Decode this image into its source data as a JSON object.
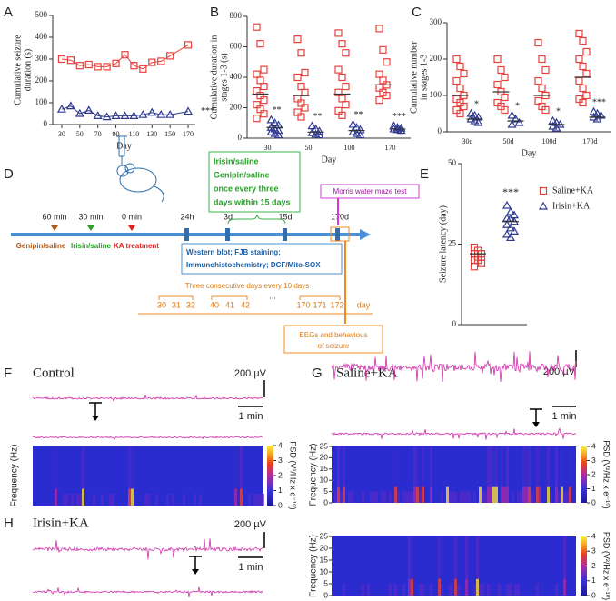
{
  "chart_data": [
    {
      "type": "line",
      "panel": "A",
      "ylabel": [
        "Cumulative seizure",
        "duration (s)"
      ],
      "xlabel": "Day",
      "x": [
        30,
        40,
        50,
        60,
        70,
        80,
        90,
        100,
        110,
        120,
        130,
        140,
        150,
        170
      ],
      "xlim": [
        20,
        178
      ],
      "xticks": [
        30,
        50,
        70,
        90,
        110,
        130,
        150,
        170
      ],
      "ylim": [
        0,
        500
      ],
      "yticks": [
        0,
        100,
        200,
        300,
        400,
        500
      ],
      "series": [
        {
          "color": "#e8413c",
          "marker": "square",
          "values": [
            300,
            295,
            270,
            275,
            265,
            265,
            280,
            320,
            270,
            255,
            285,
            290,
            315,
            365
          ]
        },
        {
          "color": "#2f3a8f",
          "marker": "triangle",
          "values": [
            70,
            85,
            50,
            65,
            40,
            35,
            40,
            40,
            40,
            45,
            55,
            45,
            45,
            60
          ]
        }
      ],
      "annotation": "***"
    },
    {
      "type": "strip",
      "panel": "B",
      "ylabel": [
        "Cumulative duration in",
        "stages 1-3 (s)"
      ],
      "xlabel": "Day",
      "categories": [
        "30",
        "50",
        "100",
        "170"
      ],
      "ylim": [
        0,
        800
      ],
      "yticks": [
        0,
        200,
        400,
        600,
        800
      ],
      "series": [
        {
          "color": "#e8413c",
          "marker": "square",
          "values": [
            [
              730,
              620,
              450,
              420,
              380,
              340,
              310,
              280,
              250,
              220,
              190,
              160,
              130
            ],
            [
              650,
              560,
              430,
              400,
              340,
              300,
              260,
              230,
              200,
              170,
              140
            ],
            [
              690,
              620,
              560,
              450,
              400,
              340,
              300,
              260,
              220,
              180,
              150
            ],
            [
              720,
              580,
              500,
              420,
              380,
              350,
              330,
              300,
              280,
              250
            ]
          ],
          "means": [
            290,
            280,
            290,
            350
          ]
        },
        {
          "color": "#2f3a8f",
          "marker": "triangle",
          "values": [
            [
              120,
              100,
              85,
              70,
              60,
              50,
              40,
              30,
              20
            ],
            [
              80,
              60,
              45,
              35,
              25,
              20
            ],
            [
              90,
              70,
              55,
              40,
              30,
              20
            ],
            [
              80,
              70,
              65,
              60,
              55,
              50
            ]
          ],
          "means": [
            70,
            40,
            50,
            60
          ]
        }
      ],
      "annotations": [
        "**",
        "**",
        "**",
        "***"
      ]
    },
    {
      "type": "strip",
      "panel": "C",
      "ylabel": [
        "Cumulative number",
        "in stages 1-3"
      ],
      "xlabel": "Day",
      "categories": [
        "30d",
        "50d",
        "100d",
        "170d"
      ],
      "ylim": [
        0,
        300
      ],
      "yticks": [
        0,
        100,
        200,
        300
      ],
      "series": [
        {
          "color": "#e8413c",
          "marker": "square",
          "values": [
            [
              200,
              180,
              160,
              140,
              120,
              100,
              90,
              80,
              70,
              60,
              50
            ],
            [
              200,
              170,
              150,
              130,
              110,
              95,
              80,
              70,
              60
            ],
            [
              245,
              200,
              170,
              140,
              120,
              100,
              85,
              70,
              60
            ],
            [
              270,
              250,
              220,
              200,
              180,
              160,
              140,
              120,
              100,
              90,
              80
            ]
          ],
          "means": [
            100,
            110,
            100,
            150
          ]
        },
        {
          "color": "#2f3a8f",
          "marker": "triangle",
          "values": [
            [
              50,
              45,
              40,
              35,
              30,
              25
            ],
            [
              45,
              35,
              25,
              20
            ],
            [
              30,
              25,
              20,
              15,
              10
            ],
            [
              55,
              50,
              45,
              40,
              35
            ]
          ],
          "means": [
            35,
            30,
            20,
            40
          ]
        }
      ],
      "annotations": [
        "*",
        "*",
        "*",
        "***"
      ]
    },
    {
      "type": "strip",
      "panel": "E",
      "ylabel": [
        "Seizure latency (day)"
      ],
      "ylim": [
        0,
        50
      ],
      "yticks": [
        0,
        25,
        50
      ],
      "series": [
        {
          "name": "Saline+KA",
          "color": "#e8413c",
          "marker": "square",
          "values": [
            24,
            23,
            22,
            22,
            21,
            21,
            20,
            20,
            19,
            18
          ],
          "means": 22
        },
        {
          "name": "Irisin+KA",
          "color": "#2f3a8f",
          "marker": "triangle",
          "values": [
            37,
            35,
            34,
            33,
            33,
            32,
            31,
            30,
            29,
            28,
            27
          ],
          "means": 32
        }
      ],
      "annotation": "***"
    }
  ],
  "diagram": {
    "panel": "D",
    "box_green": [
      "Irisin/saline",
      "Genipin/saline",
      "once every three",
      "days within 15 days"
    ],
    "box_magenta": "Morris water maze test",
    "timepoints": [
      "60 min",
      "30 min",
      "0 min",
      "24h",
      "3d",
      "15d",
      "170d"
    ],
    "treatments": [
      "Genipin/saline",
      "Irisin/saline",
      "KA treatment"
    ],
    "box_blue": [
      "Western blot; FJB staining;",
      "Immunohistochemistry;  DCF/Mito-SOX"
    ],
    "schedule_title": "Three consecutive days every 10 days",
    "schedule_days": [
      "30",
      "31",
      "32",
      "40",
      "41",
      "42",
      "...",
      "170",
      "171",
      "172",
      "day"
    ],
    "box_orange": [
      "EEGs and behavious",
      "of seizure"
    ]
  },
  "eeg": {
    "panels": [
      {
        "label": "F",
        "title": "Control",
        "amplitude_scale": "200 µV",
        "time_scale": "1 min"
      },
      {
        "label": "G",
        "title": "Saline+KA",
        "amplitude_scale": "200 µV",
        "time_scale": "1 min"
      },
      {
        "label": "H",
        "title": "Irisin+KA",
        "amplitude_scale": "200 µV",
        "time_scale": "1 min"
      }
    ],
    "spectrogram": {
      "ylabel": "Frequency (Hz)",
      "ylim": [
        0,
        25
      ],
      "yticks": [
        0,
        5,
        10,
        15,
        20,
        25
      ],
      "colorbar_label": "PSD (V²/Hz x e⁻¹⁰)",
      "colorbar_lim": [
        0,
        4
      ],
      "colorbar_ticks": [
        0,
        1,
        2,
        3,
        4
      ]
    }
  }
}
